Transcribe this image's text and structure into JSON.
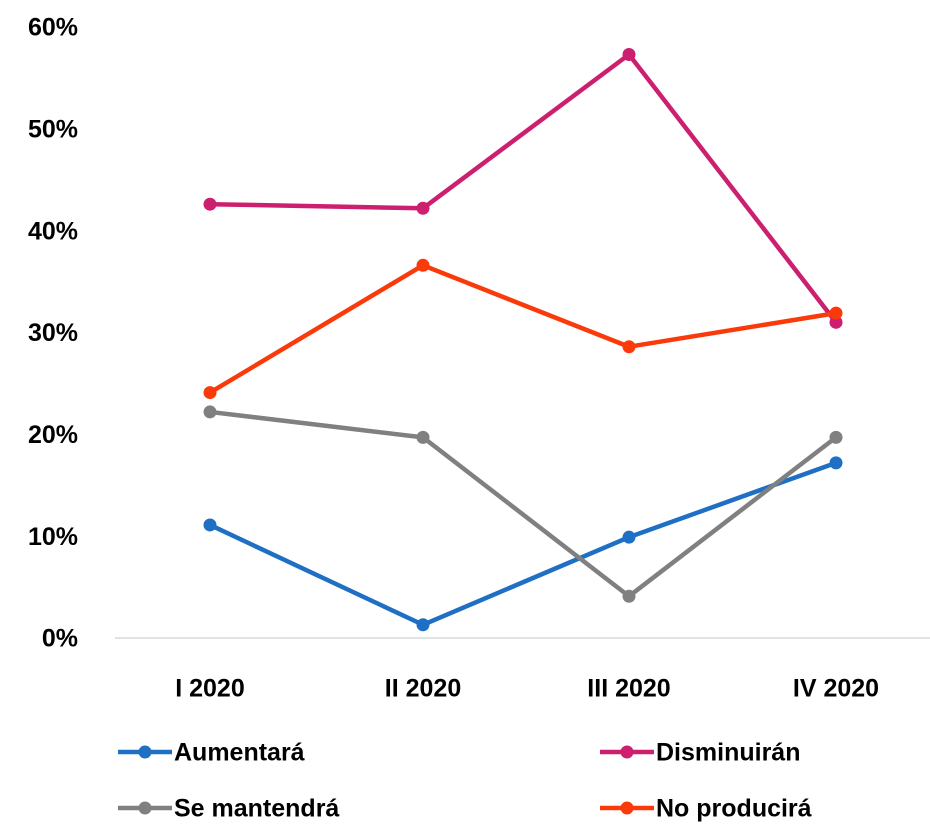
{
  "chart_data": {
    "type": "line",
    "categories": [
      "I 2020",
      "II 2020",
      "III 2020",
      "IV 2020"
    ],
    "series": [
      {
        "name": "Aumentará",
        "color": "#1f6fc5",
        "values": [
          11.1,
          1.3,
          9.9,
          17.2
        ]
      },
      {
        "name": "Disminuirán",
        "color": "#cc1f6f",
        "values": [
          42.6,
          42.2,
          57.3,
          31.0
        ]
      },
      {
        "name": "Se mantendrá",
        "color": "#808080",
        "values": [
          22.2,
          19.7,
          4.1,
          19.7
        ]
      },
      {
        "name": "No producirá",
        "color": "#fa3a0a",
        "values": [
          24.1,
          36.6,
          28.6,
          31.9
        ]
      }
    ],
    "ylim": [
      0,
      60
    ],
    "yticks": [
      {
        "value": 0,
        "label": "0%"
      },
      {
        "value": 10,
        "label": "10%"
      },
      {
        "value": 20,
        "label": "20%"
      },
      {
        "value": 30,
        "label": "30%"
      },
      {
        "value": 40,
        "label": "40%"
      },
      {
        "value": 50,
        "label": "50%"
      },
      {
        "value": 60,
        "label": "60%"
      }
    ],
    "grid": false
  }
}
